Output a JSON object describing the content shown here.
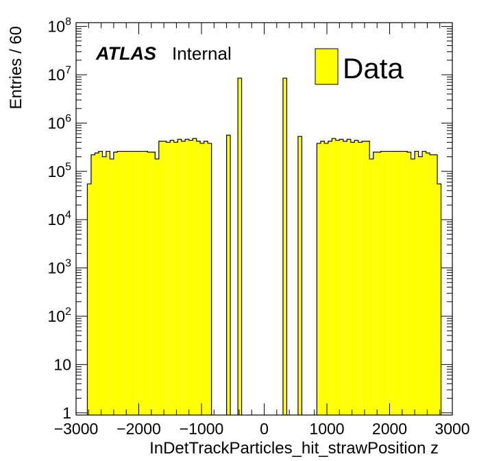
{
  "chart_data": {
    "type": "bar",
    "style": "histogram",
    "xlabel": "InDetTrackParticles_hit_strawPosition z",
    "ylabel": "Entries / 60",
    "x_range": [
      -3000,
      3000
    ],
    "y_range": [
      0.9,
      120000000
    ],
    "log_y": true,
    "bin_width": 60,
    "x_ticks": [
      {
        "value": -3000,
        "label": "−3000"
      },
      {
        "value": -2000,
        "label": "−2000"
      },
      {
        "value": -1000,
        "label": "−1000"
      },
      {
        "value": 0,
        "label": "0"
      },
      {
        "value": 1000,
        "label": "1000"
      },
      {
        "value": 2000,
        "label": "2000"
      },
      {
        "value": 3000,
        "label": "3000"
      }
    ],
    "y_ticks": [
      {
        "value": 1,
        "base": "1",
        "exp": ""
      },
      {
        "value": 10,
        "base": "10",
        "exp": ""
      },
      {
        "value": 100,
        "base": "10",
        "exp": "2"
      },
      {
        "value": 1000,
        "base": "10",
        "exp": "3"
      },
      {
        "value": 10000,
        "base": "10",
        "exp": "4"
      },
      {
        "value": 100000,
        "base": "10",
        "exp": "5"
      },
      {
        "value": 1000000,
        "base": "10",
        "exp": "6"
      },
      {
        "value": 10000000,
        "base": "10",
        "exp": "7"
      },
      {
        "value": 100000000,
        "base": "10",
        "exp": "8"
      }
    ],
    "series": [
      {
        "name": "Data",
        "color": "#ffff00",
        "bins": [
          [
            -2820,
            55000
          ],
          [
            -2760,
            220000
          ],
          [
            -2700,
            240000
          ],
          [
            -2640,
            260000
          ],
          [
            -2580,
            200000
          ],
          [
            -2520,
            260000
          ],
          [
            -2460,
            180000
          ],
          [
            -2400,
            250000
          ],
          [
            -2340,
            260000
          ],
          [
            -2280,
            260000
          ],
          [
            -2220,
            260000
          ],
          [
            -2160,
            260000
          ],
          [
            -2100,
            260000
          ],
          [
            -2040,
            260000
          ],
          [
            -1980,
            260000
          ],
          [
            -1920,
            260000
          ],
          [
            -1860,
            250000
          ],
          [
            -1800,
            250000
          ],
          [
            -1740,
            180000
          ],
          [
            -1680,
            420000
          ],
          [
            -1620,
            420000
          ],
          [
            -1560,
            400000
          ],
          [
            -1500,
            440000
          ],
          [
            -1440,
            400000
          ],
          [
            -1380,
            460000
          ],
          [
            -1320,
            420000
          ],
          [
            -1260,
            460000
          ],
          [
            -1200,
            440000
          ],
          [
            -1140,
            480000
          ],
          [
            -1080,
            420000
          ],
          [
            -1020,
            380000
          ],
          [
            -960,
            420000
          ],
          [
            -900,
            380000
          ],
          [
            -600,
            560000
          ],
          [
            -420,
            8500000
          ],
          [
            300,
            8500000
          ],
          [
            540,
            530000
          ],
          [
            840,
            380000
          ],
          [
            900,
            420000
          ],
          [
            960,
            380000
          ],
          [
            1020,
            420000
          ],
          [
            1080,
            480000
          ],
          [
            1140,
            440000
          ],
          [
            1200,
            460000
          ],
          [
            1260,
            420000
          ],
          [
            1320,
            460000
          ],
          [
            1380,
            400000
          ],
          [
            1440,
            440000
          ],
          [
            1500,
            400000
          ],
          [
            1560,
            420000
          ],
          [
            1620,
            420000
          ],
          [
            1680,
            180000
          ],
          [
            1740,
            250000
          ],
          [
            1800,
            250000
          ],
          [
            1860,
            260000
          ],
          [
            1920,
            260000
          ],
          [
            1980,
            260000
          ],
          [
            2040,
            260000
          ],
          [
            2100,
            260000
          ],
          [
            2160,
            260000
          ],
          [
            2220,
            260000
          ],
          [
            2280,
            250000
          ],
          [
            2340,
            180000
          ],
          [
            2400,
            260000
          ],
          [
            2460,
            200000
          ],
          [
            2520,
            260000
          ],
          [
            2580,
            240000
          ],
          [
            2640,
            220000
          ],
          [
            2700,
            220000
          ],
          [
            2760,
            55000
          ]
        ]
      }
    ],
    "legend": {
      "label": "Data",
      "position": "top-right"
    },
    "annotation": {
      "experiment": "ATLAS",
      "status": "Internal"
    }
  }
}
